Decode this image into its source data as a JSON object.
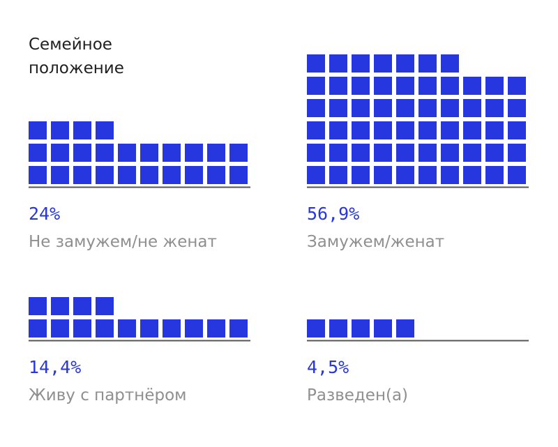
{
  "title": "Семейное\nположение",
  "colors": {
    "square": "#2637e0",
    "percent": "#2637e0",
    "label": "#8f8f8f",
    "baseline": "#555555",
    "title": "#1f1f1f"
  },
  "chart_data": {
    "type": "waffle",
    "title": "Семейное\nположение",
    "unit_per_square": 1,
    "groups": [
      {
        "name": "Не замужем/не женат",
        "value_label": "24%",
        "value": 24.0,
        "squares": 24
      },
      {
        "name": "Замужем/женат",
        "value_label": "56,9%",
        "value": 56.9,
        "squares": 57
      },
      {
        "name": "Живу с партнёром",
        "value_label": "14,4%",
        "value": 14.4,
        "squares": 14
      },
      {
        "name": "Разведен(а)",
        "value_label": "4,5%",
        "value": 4.5,
        "squares": 5
      }
    ]
  }
}
